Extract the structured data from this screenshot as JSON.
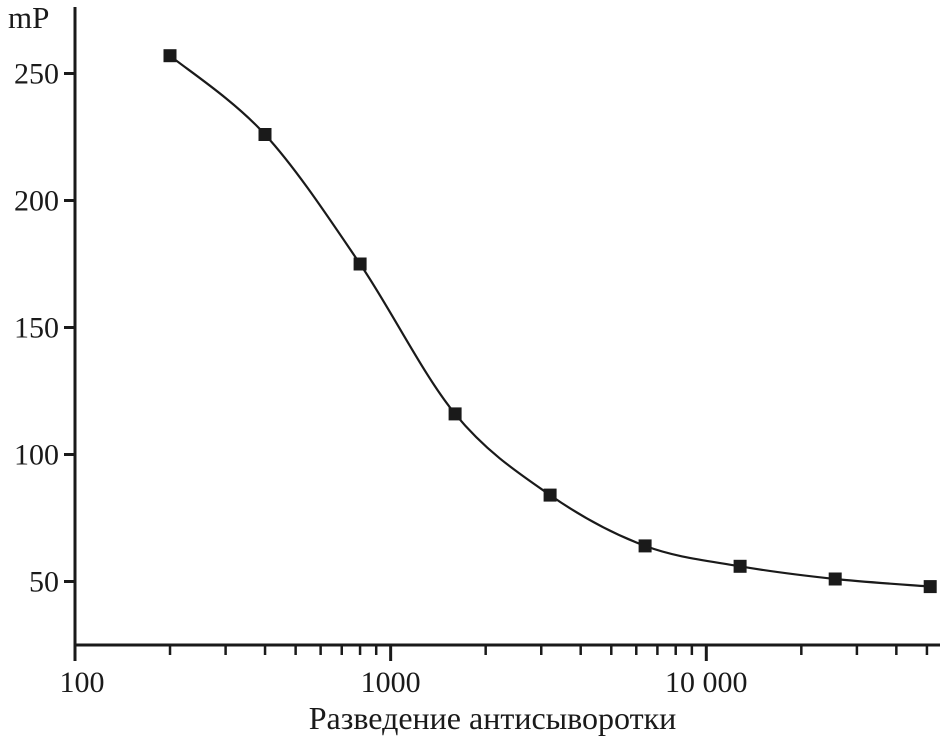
{
  "chart_data": {
    "type": "line",
    "title": "",
    "xlabel": "Разведение антисыворотки",
    "ylabel": "mP",
    "x_scale": "log",
    "y_scale": "linear",
    "xlim": [
      100,
      55000
    ],
    "ylim": [
      25,
      275
    ],
    "x": [
      200,
      400,
      800,
      1600,
      3200,
      6400,
      12800,
      25600,
      51200
    ],
    "y": [
      257,
      226,
      175,
      116,
      84,
      64,
      56,
      51,
      48
    ],
    "y_ticks": [
      50,
      100,
      150,
      200,
      250
    ],
    "x_major_ticks": [
      100,
      1000,
      10000
    ],
    "x_major_tick_labels": [
      "100",
      "1000",
      "10 000"
    ],
    "marker": "square",
    "grid": false,
    "legend": null,
    "line_color": "#1a1a1a",
    "marker_color": "#1a1a1a",
    "background_color": "#ffffff"
  }
}
